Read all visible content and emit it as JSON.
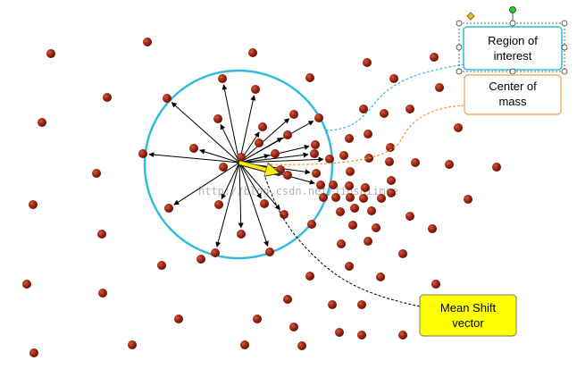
{
  "colors": {
    "point": "#8b1a0c",
    "circle": "#33bbdd",
    "arrow": "#000000",
    "mean_shift_arrow": "#ffee00",
    "roi_box_border": "#33bbdd",
    "com_box_border": "#f0b070",
    "mean_shift_box_fill": "#ffff00",
    "leader_roi": "#33bbdd",
    "leader_com": "#ee9a3a",
    "leader_ms": "#000000"
  },
  "labels": {
    "roi": [
      "Region of",
      "interest"
    ],
    "com": [
      "Center of",
      "mass"
    ],
    "mean_shift": [
      "Mean Shift",
      "vector"
    ]
  },
  "watermark": "http://blog.csdn.net/jinshiimce"
}
